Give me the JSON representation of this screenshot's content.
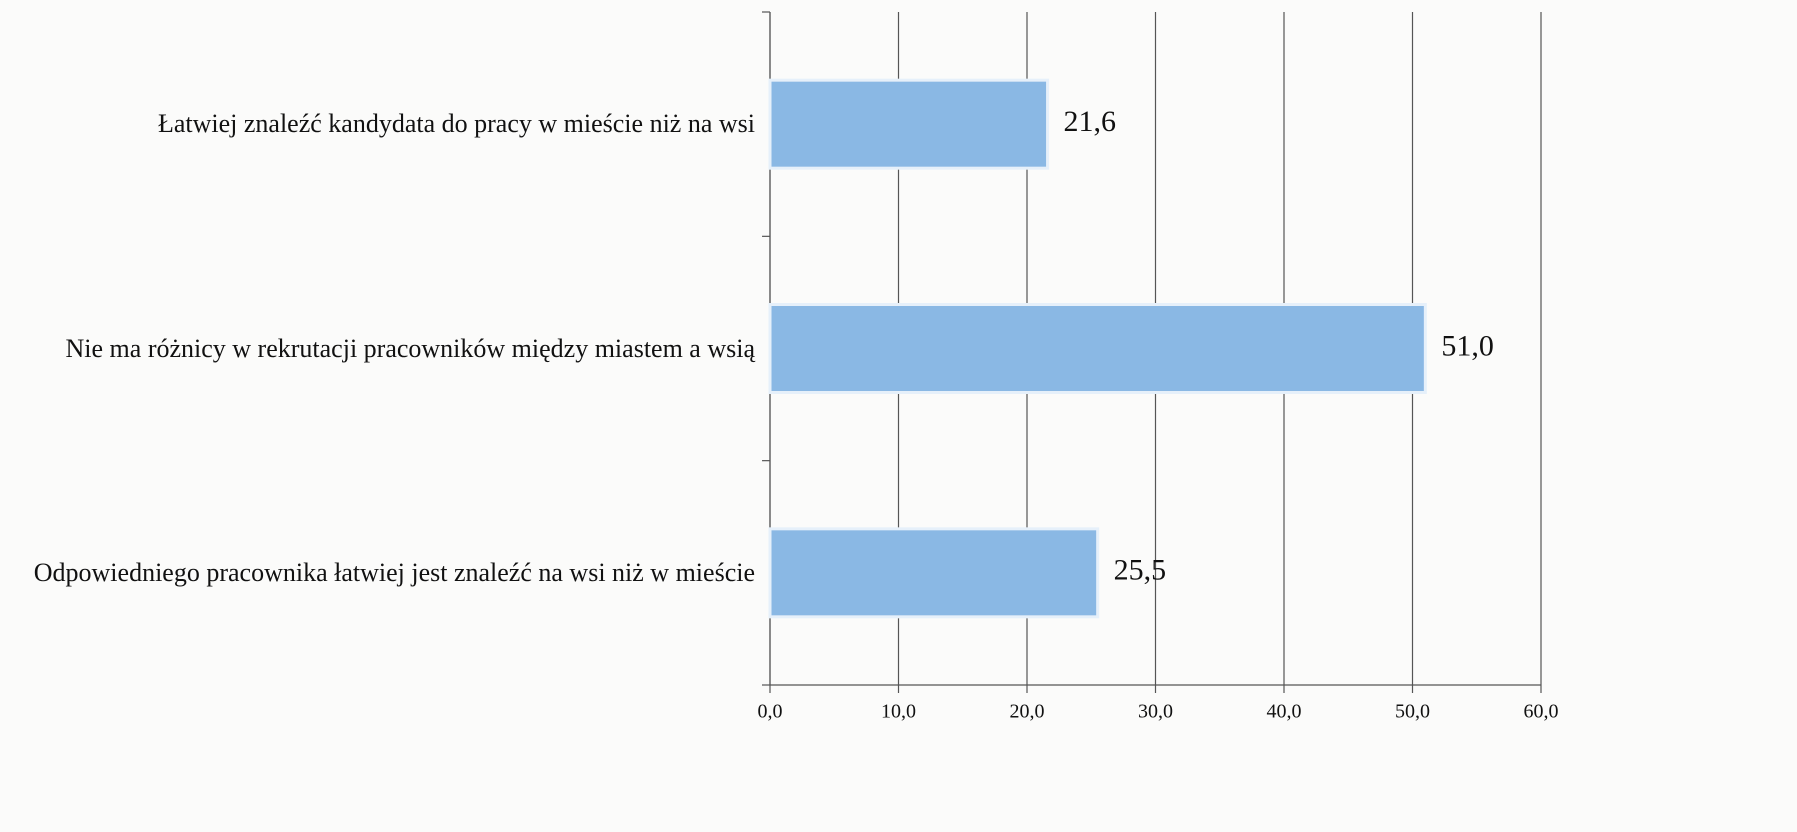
{
  "chart_data": {
    "type": "barh",
    "categories": [
      "Łatwiej znaleźć kandydata do pracy w mieście niż na wsi",
      "Nie ma różnicy w rekrutacji pracowników między miastem a wsią",
      "Odpowiedniego pracownika łatwiej jest znaleźć na wsi niż w mieście"
    ],
    "values": [
      21.6,
      51.0,
      25.5
    ],
    "value_labels": [
      "21,6",
      "51,0",
      "25,5"
    ],
    "color": "#8ab8e4",
    "xlim": [
      0,
      60
    ],
    "xticks": [
      {
        "value": 0,
        "label": "0,0"
      },
      {
        "value": 10,
        "label": "10,0"
      },
      {
        "value": 20,
        "label": "20,0"
      },
      {
        "value": 30,
        "label": "30,0"
      },
      {
        "value": 40,
        "label": "40,0"
      },
      {
        "value": 50,
        "label": "50,0"
      },
      {
        "value": 60,
        "label": "60,0"
      }
    ],
    "grid": true
  }
}
